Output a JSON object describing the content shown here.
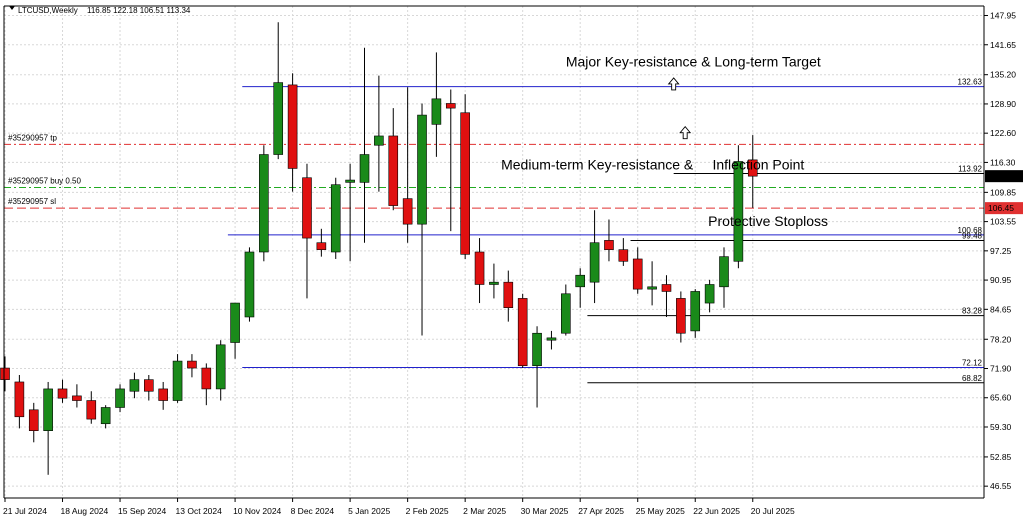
{
  "chart_data": {
    "type": "candlestick",
    "symbol": "LTCUSD,Weekly",
    "ohlc_header": "116.85 122.18 106.51 113.34",
    "ylim": [
      44.0,
      150.0
    ],
    "y_ticks": [
      "147.95",
      "141.65",
      "135.20",
      "128.90",
      "122.60",
      "116.30",
      "109.85",
      "103.55",
      "97.25",
      "90.95",
      "84.65",
      "78.20",
      "71.90",
      "65.60",
      "59.30",
      "52.85",
      "46.55"
    ],
    "x_ticks": [
      {
        "label": "21 Jul 2024",
        "i": 0
      },
      {
        "label": "18 Aug 2024",
        "i": 4
      },
      {
        "label": "15 Sep 2024",
        "i": 8
      },
      {
        "label": "13 Oct 2024",
        "i": 12
      },
      {
        "label": "10 Nov 2024",
        "i": 16
      },
      {
        "label": "8 Dec 2024",
        "i": 20
      },
      {
        "label": "5 Jan 2025",
        "i": 24
      },
      {
        "label": "2 Feb 2025",
        "i": 28
      },
      {
        "label": "2 Mar 2025",
        "i": 32
      },
      {
        "label": "30 Mar 2025",
        "i": 36
      },
      {
        "label": "27 Apr 2025",
        "i": 40
      },
      {
        "label": "25 May 2025",
        "i": 44
      },
      {
        "label": "22 Jun 2025",
        "i": 48
      },
      {
        "label": "20 Jul 2025",
        "i": 52
      }
    ],
    "candles": [
      [
        72.0,
        74.5,
        67.0,
        69.5
      ],
      [
        69.0,
        70.5,
        59.0,
        61.5
      ],
      [
        63.0,
        64.5,
        56.0,
        58.5
      ],
      [
        58.5,
        69.0,
        49.0,
        67.5
      ],
      [
        67.5,
        69.5,
        64.5,
        65.5
      ],
      [
        66.0,
        68.5,
        63.5,
        65.0
      ],
      [
        65.0,
        67.0,
        60.0,
        61.0
      ],
      [
        60.0,
        64.0,
        59.0,
        63.5
      ],
      [
        63.5,
        68.5,
        62.5,
        67.5
      ],
      [
        67.0,
        71.0,
        65.5,
        69.5
      ],
      [
        69.5,
        70.5,
        65.0,
        67.0
      ],
      [
        67.5,
        69.0,
        63.0,
        65.0
      ],
      [
        65.0,
        75.0,
        64.5,
        73.5
      ],
      [
        73.5,
        75.0,
        70.0,
        72.0
      ],
      [
        72.0,
        73.0,
        64.0,
        67.5
      ],
      [
        67.5,
        78.0,
        65.0,
        77.0
      ],
      [
        77.5,
        86.0,
        74.0,
        86.0
      ],
      [
        83.0,
        98.0,
        82.0,
        97.0
      ],
      [
        97.0,
        120.0,
        95.0,
        118.0
      ],
      [
        118.0,
        146.5,
        117.0,
        133.5
      ],
      [
        133.0,
        135.5,
        110.0,
        115.0
      ],
      [
        113.0,
        116.0,
        87.0,
        100.0
      ],
      [
        99.0,
        102.0,
        96.0,
        97.5
      ],
      [
        97.0,
        113.0,
        95.5,
        111.5
      ],
      [
        112.0,
        116.0,
        95.0,
        112.5
      ],
      [
        112.0,
        141.0,
        99.0,
        118.0
      ],
      [
        120.0,
        135.0,
        110.0,
        122.0
      ],
      [
        122.0,
        128.0,
        106.0,
        107.0
      ],
      [
        108.5,
        132.5,
        99.0,
        103.0
      ],
      [
        103.0,
        129.0,
        79.0,
        126.5
      ],
      [
        124.5,
        140.0,
        117.5,
        130.0
      ],
      [
        129.0,
        132.0,
        101.5,
        128.0
      ],
      [
        127.0,
        131.0,
        95.5,
        96.5
      ],
      [
        97.0,
        100.0,
        86.0,
        90.0
      ],
      [
        90.0,
        94.5,
        87.0,
        90.5
      ],
      [
        90.5,
        93.0,
        82.0,
        85.0
      ],
      [
        87.0,
        88.0,
        72.0,
        72.5
      ],
      [
        72.5,
        81.0,
        63.5,
        79.5
      ],
      [
        78.0,
        80.0,
        76.0,
        78.5
      ],
      [
        79.5,
        90.0,
        79.0,
        88.0
      ],
      [
        89.5,
        93.5,
        85.0,
        92.0
      ],
      [
        90.5,
        106.0,
        86.0,
        99.0
      ],
      [
        99.5,
        104.0,
        95.0,
        97.5
      ],
      [
        97.5,
        100.0,
        94.0,
        95.0
      ],
      [
        95.5,
        98.0,
        88.0,
        89.0
      ],
      [
        89.0,
        95.0,
        85.5,
        89.5
      ],
      [
        90.0,
        92.0,
        83.0,
        88.5
      ],
      [
        87.0,
        88.5,
        77.5,
        79.5
      ],
      [
        80.0,
        89.0,
        78.5,
        88.5
      ],
      [
        86.0,
        91.0,
        84.0,
        90.0
      ],
      [
        89.5,
        98.0,
        85.0,
        96.0
      ],
      [
        95.0,
        120.0,
        93.5,
        116.5
      ],
      [
        116.85,
        122.18,
        106.51,
        113.34
      ]
    ],
    "hlines": [
      {
        "label": "132.63",
        "value": 132.63,
        "color": "#2222cc",
        "style": "solid",
        "x_from_i": 16.5
      },
      {
        "label": "#35290957 tp",
        "value": 120.2,
        "color": "#e03030",
        "style": "dashdot",
        "x_from_i": -1
      },
      {
        "label": "113.92",
        "value": 113.92,
        "color": "#000000",
        "style": "solid",
        "x_from_i": 46.5
      },
      {
        "label": "#35290957 buy 0.50",
        "value": 110.9,
        "color": "#22aa22",
        "style": "dashdot",
        "x_from_i": -1
      },
      {
        "label": "#35290957 sl",
        "value": 106.45,
        "color": "#e03030",
        "style": "dashed",
        "x_from_i": -1
      },
      {
        "label": "100.68",
        "value": 100.68,
        "color": "#2222cc",
        "style": "solid",
        "x_from_i": 15.5
      },
      {
        "label": "99.48",
        "value": 99.48,
        "color": "#000000",
        "style": "solid",
        "x_from_i": 43.5
      },
      {
        "label": "83.28",
        "value": 83.28,
        "color": "#000000",
        "style": "solid",
        "x_from_i": 40.5
      },
      {
        "label": "72.12",
        "value": 72.12,
        "color": "#2222cc",
        "style": "solid",
        "x_from_i": 16.5
      },
      {
        "label": "68.82",
        "value": 68.82,
        "color": "#000000",
        "style": "solid",
        "x_from_i": 40.5
      }
    ],
    "price_badges": [
      {
        "label": "113.34",
        "value": 113.34,
        "bg": "#000000",
        "fg": "#ffffff"
      },
      {
        "label": "106.45",
        "value": 106.45,
        "bg": "#e03030",
        "fg": "#ffffff"
      }
    ],
    "annotations": [
      {
        "text": "Major Key-resistance & Long-term Target",
        "i": 39.0,
        "value": 137.0,
        "arrow_i": 46.5,
        "arrow_value": 133.0
      },
      {
        "text": "Medium-term Key-resistance &",
        "i": 34.5,
        "value": 114.8
      },
      {
        "text": "Inflection Point",
        "i": 49.2,
        "value": 114.8,
        "arrow_i": 47.3,
        "arrow_value": 122.5
      },
      {
        "text": "Protective Stoploss",
        "i": 48.9,
        "value": 102.6
      }
    ],
    "colors": {
      "bull": "#1a8a1a",
      "bear": "#e01010",
      "wick": "#000000",
      "grid": "#d8d8d8",
      "axis": "#000000"
    }
  }
}
